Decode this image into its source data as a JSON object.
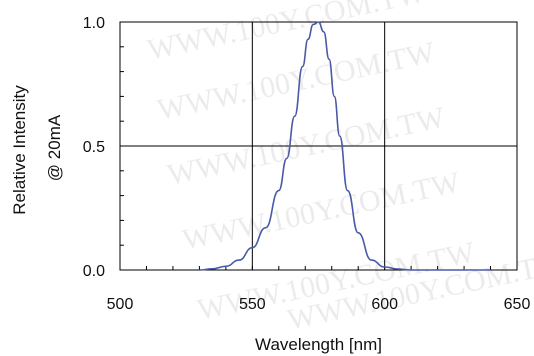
{
  "chart_data": {
    "type": "line",
    "title": "",
    "xlabel": "Wavelength [nm]",
    "ylabel_lines": [
      "Relative Intensity",
      "@ 20mA"
    ],
    "xlim": [
      500,
      650
    ],
    "ylim": [
      0,
      1
    ],
    "x_ticks": [
      500,
      550,
      600,
      650
    ],
    "x_tick_labels": [
      "500",
      "550",
      "600",
      "650"
    ],
    "y_ticks": [
      0,
      0.5,
      1
    ],
    "y_tick_labels": [
      "0.0",
      "0.5",
      "1.0"
    ],
    "grid": true,
    "legend": "none",
    "series": [
      {
        "color": "#4a5aa8",
        "x": [
          530,
          535,
          540,
          545,
          550,
          555,
          560,
          563,
          566,
          569,
          571,
          573,
          575,
          577,
          579,
          581,
          583,
          586,
          590,
          595,
          600,
          605,
          610,
          620,
          630,
          640
        ],
        "y": [
          0.0,
          0.005,
          0.015,
          0.04,
          0.09,
          0.17,
          0.32,
          0.45,
          0.62,
          0.82,
          0.93,
          0.99,
          1.0,
          0.96,
          0.85,
          0.7,
          0.54,
          0.32,
          0.15,
          0.04,
          0.012,
          0.004,
          0.0,
          0.0,
          0.0,
          0.0
        ]
      }
    ],
    "watermark": "WWW.100Y.COM.TW"
  }
}
